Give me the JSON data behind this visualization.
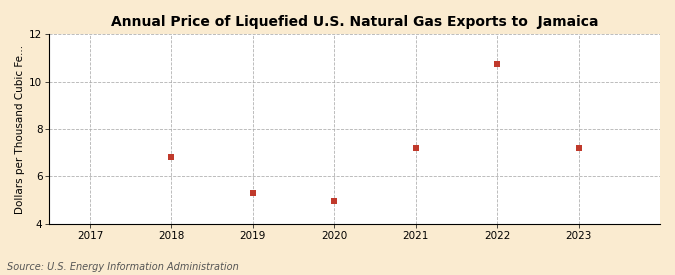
{
  "title": "Annual Price of Liquefied U.S. Natural Gas Exports to  Jamaica",
  "ylabel": "Dollars per Thousand Cubic Fe...",
  "source": "Source: U.S. Energy Information Administration",
  "x": [
    2018,
    2019,
    2020,
    2021,
    2022,
    2023
  ],
  "y": [
    6.84,
    5.28,
    4.95,
    7.2,
    10.75,
    7.2
  ],
  "xlim": [
    2016.5,
    2024.0
  ],
  "ylim": [
    4,
    12
  ],
  "yticks": [
    4,
    6,
    8,
    10,
    12
  ],
  "xticks": [
    2017,
    2018,
    2019,
    2020,
    2021,
    2022,
    2023
  ],
  "marker_color": "#c0392b",
  "marker": "s",
  "marker_size": 4,
  "plot_bg_color": "#ffffff",
  "outer_bg_color": "#faebd0",
  "grid_color": "#aaaaaa",
  "title_fontsize": 10,
  "label_fontsize": 7.5,
  "tick_fontsize": 7.5,
  "source_fontsize": 7
}
